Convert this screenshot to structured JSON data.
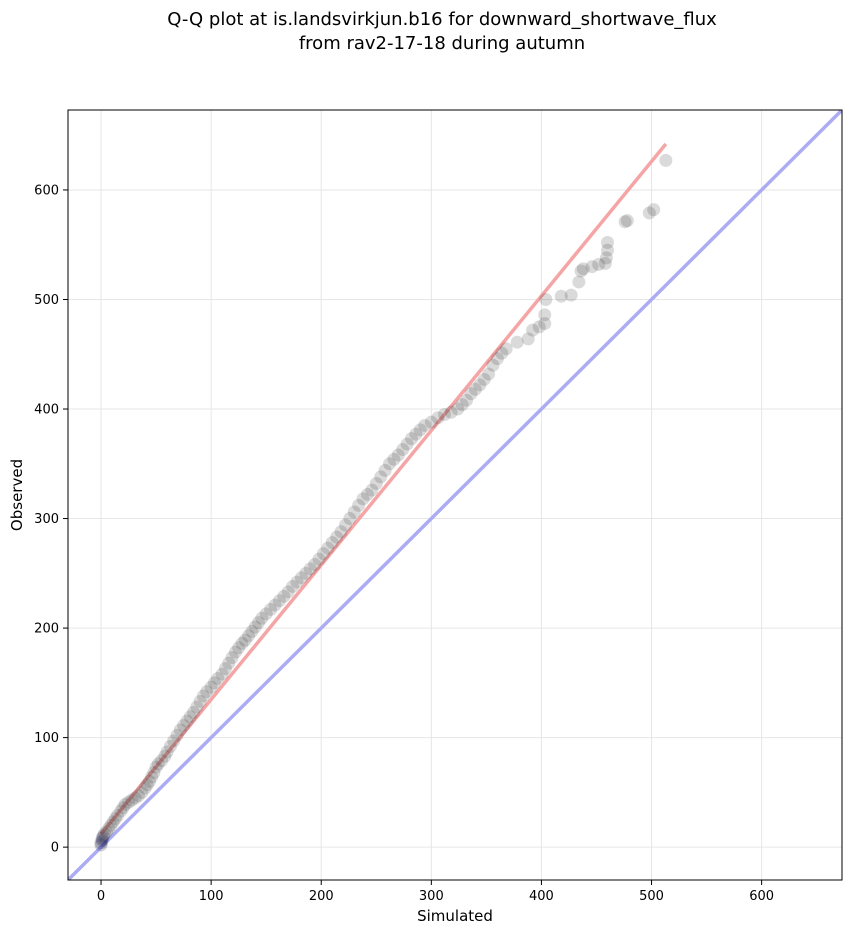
{
  "chart_data": {
    "type": "scatter",
    "title_line1": "Q-Q plot at is.landsvirkjun.b16 for downward_shortwave_flux",
    "title_line2": "from rav2-17-18 during autumn",
    "xlabel": "Simulated",
    "ylabel": "Observed",
    "xlim": [
      -30,
      673
    ],
    "ylim": [
      -30,
      673
    ],
    "xticks": [
      0,
      100,
      200,
      300,
      400,
      500,
      600
    ],
    "yticks": [
      0,
      100,
      200,
      300,
      400,
      500,
      600
    ],
    "grid": true,
    "colors": {
      "points": "#333333",
      "points_low": "#000033",
      "fit_line": "#f4a0a0",
      "identity_line": "#a8a8f4",
      "grid": "#e6e6e6"
    },
    "identity_line": {
      "x": [
        -30,
        673
      ],
      "y": [
        -30,
        673
      ]
    },
    "fit_line": {
      "x": [
        0,
        513
      ],
      "y": [
        12,
        642
      ]
    },
    "points": [
      [
        0,
        2
      ],
      [
        0,
        4
      ],
      [
        1,
        6
      ],
      [
        1,
        8
      ],
      [
        2,
        10
      ],
      [
        3,
        12
      ],
      [
        5,
        14
      ],
      [
        7,
        17
      ],
      [
        9,
        20
      ],
      [
        11,
        23
      ],
      [
        13,
        26
      ],
      [
        15,
        29
      ],
      [
        18,
        33
      ],
      [
        20,
        36
      ],
      [
        22,
        39
      ],
      [
        25,
        41
      ],
      [
        28,
        43
      ],
      [
        31,
        45
      ],
      [
        34,
        47
      ],
      [
        37,
        50
      ],
      [
        40,
        54
      ],
      [
        42,
        57
      ],
      [
        44,
        60
      ],
      [
        46,
        64
      ],
      [
        48,
        68
      ],
      [
        50,
        73
      ],
      [
        52,
        76
      ],
      [
        55,
        79
      ],
      [
        58,
        83
      ],
      [
        60,
        87
      ],
      [
        63,
        92
      ],
      [
        66,
        97
      ],
      [
        69,
        102
      ],
      [
        72,
        107
      ],
      [
        75,
        111
      ],
      [
        78,
        115
      ],
      [
        81,
        119
      ],
      [
        84,
        123
      ],
      [
        87,
        128
      ],
      [
        90,
        133
      ],
      [
        93,
        138
      ],
      [
        96,
        142
      ],
      [
        100,
        146
      ],
      [
        103,
        150
      ],
      [
        106,
        154
      ],
      [
        110,
        158
      ],
      [
        113,
        163
      ],
      [
        116,
        168
      ],
      [
        119,
        173
      ],
      [
        122,
        178
      ],
      [
        125,
        182
      ],
      [
        128,
        186
      ],
      [
        131,
        189
      ],
      [
        134,
        193
      ],
      [
        137,
        197
      ],
      [
        140,
        201
      ],
      [
        143,
        205
      ],
      [
        146,
        209
      ],
      [
        150,
        213
      ],
      [
        154,
        217
      ],
      [
        158,
        221
      ],
      [
        162,
        225
      ],
      [
        166,
        229
      ],
      [
        170,
        233
      ],
      [
        174,
        238
      ],
      [
        178,
        242
      ],
      [
        182,
        246
      ],
      [
        186,
        250
      ],
      [
        190,
        254
      ],
      [
        194,
        258
      ],
      [
        198,
        263
      ],
      [
        202,
        268
      ],
      [
        206,
        273
      ],
      [
        210,
        278
      ],
      [
        214,
        283
      ],
      [
        218,
        288
      ],
      [
        222,
        294
      ],
      [
        226,
        300
      ],
      [
        230,
        306
      ],
      [
        234,
        312
      ],
      [
        238,
        318
      ],
      [
        242,
        322
      ],
      [
        246,
        326
      ],
      [
        250,
        332
      ],
      [
        254,
        338
      ],
      [
        258,
        344
      ],
      [
        262,
        350
      ],
      [
        266,
        354
      ],
      [
        270,
        358
      ],
      [
        274,
        363
      ],
      [
        278,
        368
      ],
      [
        282,
        373
      ],
      [
        286,
        377
      ],
      [
        290,
        381
      ],
      [
        294,
        385
      ],
      [
        300,
        388
      ],
      [
        306,
        392
      ],
      [
        312,
        395
      ],
      [
        318,
        397
      ],
      [
        324,
        400
      ],
      [
        328,
        404
      ],
      [
        332,
        408
      ],
      [
        336,
        414
      ],
      [
        340,
        418
      ],
      [
        344,
        422
      ],
      [
        348,
        427
      ],
      [
        352,
        432
      ],
      [
        356,
        440
      ],
      [
        360,
        446
      ],
      [
        364,
        451
      ],
      [
        368,
        455
      ],
      [
        378,
        461
      ],
      [
        388,
        464
      ],
      [
        392,
        472
      ],
      [
        398,
        475
      ],
      [
        403,
        478
      ],
      [
        403,
        486
      ],
      [
        404,
        500
      ],
      [
        418,
        503
      ],
      [
        427,
        504
      ],
      [
        434,
        516
      ],
      [
        436,
        526
      ],
      [
        438,
        528
      ],
      [
        446,
        530
      ],
      [
        452,
        532
      ],
      [
        458,
        533
      ],
      [
        459,
        538
      ],
      [
        460,
        545
      ],
      [
        460,
        552
      ],
      [
        476,
        571
      ],
      [
        478,
        572
      ],
      [
        498,
        579
      ],
      [
        502,
        582
      ],
      [
        513,
        627
      ]
    ]
  }
}
